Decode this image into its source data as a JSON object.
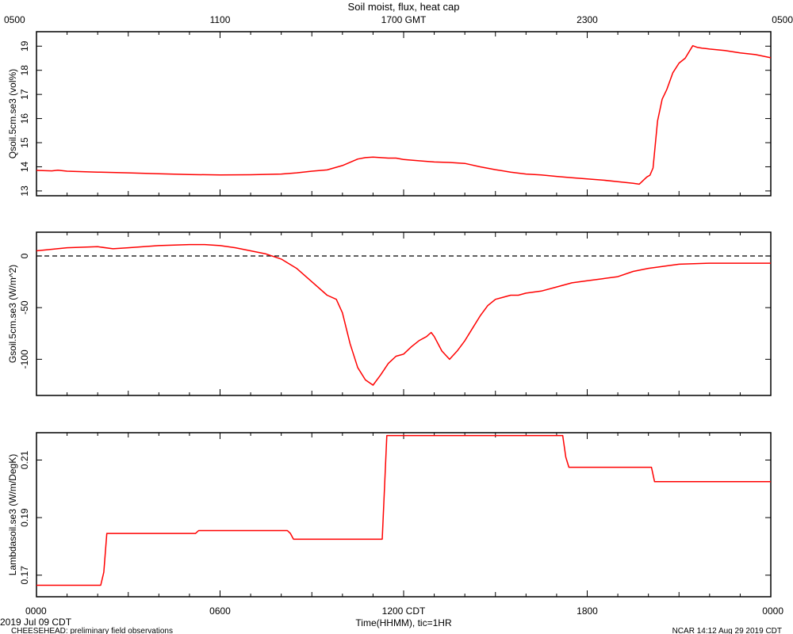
{
  "chart_data": {
    "type": "line",
    "title": "Soil moist, flux, heat cap",
    "top_axis": {
      "label": "",
      "ticks": [
        "0500",
        "1100",
        "1700 GMT",
        "2300",
        "0500"
      ]
    },
    "bottom_axis": {
      "label": "Time(HHMM), tic=1HR",
      "ticks": [
        "0000",
        "0600",
        "1200 CDT",
        "1800",
        "0000"
      ],
      "xlim": [
        0,
        24
      ]
    },
    "footer": {
      "date": "2019 Jul 09 CDT",
      "project": "CHEESEHEAD: preliminary field observations",
      "credit": "NCAR 14:12 Aug 29 2019 CDT"
    },
    "line_color": "#ff0000",
    "panels": [
      {
        "ylabel": "Qsoil.5cm.se3 (vol%)",
        "ylim": [
          12.8,
          19.6
        ],
        "yticks": [
          13,
          14,
          15,
          16,
          17,
          18,
          19
        ],
        "zero_line": false,
        "x": [
          0,
          0.5,
          0.7,
          1,
          2,
          3,
          4,
          5,
          6,
          7,
          8,
          8.5,
          9,
          9.5,
          10,
          10.5,
          10.75,
          11,
          11.25,
          11.5,
          11.75,
          12,
          12.5,
          13,
          13.5,
          14,
          14.5,
          15,
          15.5,
          16,
          16.5,
          17,
          17.5,
          18,
          18.5,
          19,
          19.5,
          19.7,
          19.95,
          20.05,
          20.15,
          20.3,
          20.45,
          20.6,
          20.8,
          21,
          21.2,
          21.45,
          21.6,
          21.75,
          22,
          22.5,
          23,
          23.5,
          24
        ],
        "y": [
          13.85,
          13.83,
          13.86,
          13.82,
          13.78,
          13.75,
          13.71,
          13.68,
          13.66,
          13.67,
          13.7,
          13.75,
          13.82,
          13.87,
          14.05,
          14.32,
          14.38,
          14.4,
          14.38,
          14.36,
          14.36,
          14.3,
          14.25,
          14.2,
          14.18,
          14.14,
          14.0,
          13.88,
          13.78,
          13.7,
          13.66,
          13.6,
          13.55,
          13.5,
          13.45,
          13.38,
          13.32,
          13.28,
          13.58,
          13.65,
          13.95,
          15.9,
          16.8,
          17.2,
          17.9,
          18.3,
          18.5,
          19.02,
          18.95,
          18.92,
          18.88,
          18.82,
          18.72,
          18.65,
          18.52
        ]
      },
      {
        "ylabel": "Gsoil.5cm.se3 (W/m^2)",
        "ylim": [
          -135,
          23
        ],
        "yticks": [
          0,
          -50,
          -100
        ],
        "zero_line": true,
        "x": [
          0,
          1,
          2,
          2.5,
          3,
          4,
          5,
          5.5,
          6,
          6.5,
          7,
          7.5,
          8,
          8.5,
          9,
          9.5,
          9.8,
          10,
          10.25,
          10.5,
          10.75,
          11,
          11.25,
          11.5,
          11.75,
          12,
          12.25,
          12.5,
          12.75,
          12.9,
          13,
          13.25,
          13.5,
          13.75,
          14,
          14.25,
          14.5,
          14.75,
          15,
          15.25,
          15.5,
          15.75,
          16,
          16.5,
          17,
          17.5,
          18,
          18.5,
          19,
          19.5,
          20,
          20.5,
          21,
          22,
          23,
          24
        ],
        "y": [
          5,
          8,
          9,
          7,
          8,
          10,
          11,
          11,
          10,
          8,
          5,
          2,
          -3,
          -12,
          -25,
          -38,
          -42,
          -55,
          -85,
          -108,
          -120,
          -125,
          -115,
          -104,
          -97,
          -95,
          -88,
          -82,
          -78,
          -74,
          -78,
          -92,
          -100,
          -92,
          -82,
          -70,
          -58,
          -48,
          -42,
          -40,
          -38,
          -38,
          -36,
          -34,
          -30,
          -26,
          -24,
          -22,
          -20,
          -15,
          -12,
          -10,
          -8,
          -7,
          -7,
          -7
        ]
      },
      {
        "ylabel": "Lambdasoil.se3 (W/m/DegK)",
        "ylim": [
          0.1625,
          0.2195
        ],
        "yticks": [
          0.17,
          0.19,
          0.21
        ],
        "zero_line": false,
        "x": [
          0,
          2.1,
          2.2,
          2.3,
          5.2,
          5.3,
          8.2,
          8.3,
          8.4,
          11.3,
          11.45,
          17.2,
          17.3,
          17.4,
          20.1,
          20.2,
          24
        ],
        "y": [
          0.1665,
          0.1665,
          0.171,
          0.1845,
          0.1845,
          0.1855,
          0.1855,
          0.1845,
          0.1825,
          0.1825,
          0.2185,
          0.2185,
          0.211,
          0.2075,
          0.2075,
          0.2025,
          0.2025
        ]
      }
    ]
  }
}
